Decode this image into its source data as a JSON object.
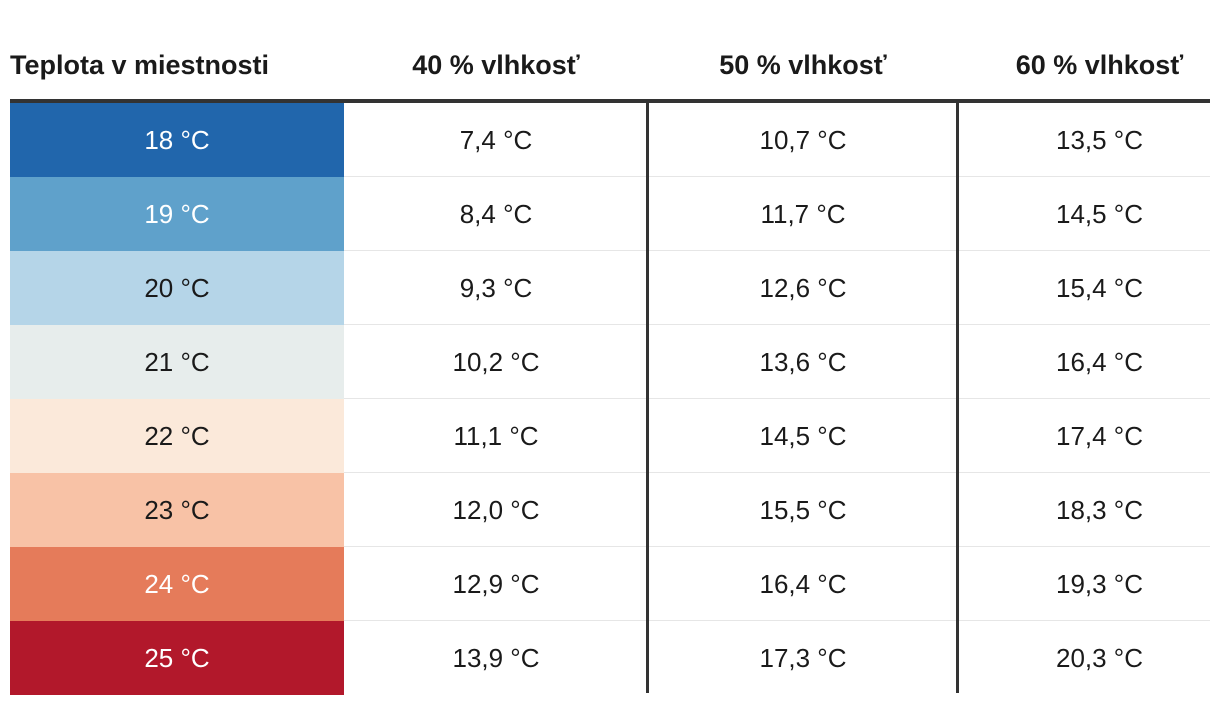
{
  "chart_data": {
    "type": "table",
    "columns": [
      "Teplota v miestnosti",
      "40 % vlhkosť",
      "50 % vlhkosť",
      "60 % vlhkosť"
    ],
    "rows": [
      {
        "room": "18 °C",
        "values": [
          "7,4 °C",
          "10,7 °C",
          "13,5 °C"
        ],
        "color": "#2166ac",
        "text_color": "#ffffff"
      },
      {
        "room": "19 °C",
        "values": [
          "8,4 °C",
          "11,7 °C",
          "14,5 °C"
        ],
        "color": "#5fa1cb",
        "text_color": "#ffffff"
      },
      {
        "room": "20 °C",
        "values": [
          "9,3 °C",
          "12,6 °C",
          "15,4 °C"
        ],
        "color": "#b5d5e8",
        "text_color": "#1a1a1a"
      },
      {
        "room": "21 °C",
        "values": [
          "10,2 °C",
          "13,6 °C",
          "16,4 °C"
        ],
        "color": "#e7edec",
        "text_color": "#1a1a1a"
      },
      {
        "room": "22 °C",
        "values": [
          "11,1 °C",
          "14,5 °C",
          "17,4 °C"
        ],
        "color": "#fbe9da",
        "text_color": "#1a1a1a"
      },
      {
        "room": "23 °C",
        "values": [
          "12,0 °C",
          "15,5 °C",
          "18,3 °C"
        ],
        "color": "#f8c2a6",
        "text_color": "#1a1a1a"
      },
      {
        "room": "24 °C",
        "values": [
          "12,9 °C",
          "16,4 °C",
          "19,3 °C"
        ],
        "color": "#e57b5a",
        "text_color": "#ffffff"
      },
      {
        "room": "25 °C",
        "values": [
          "13,9 °C",
          "17,3 °C",
          "20,3 °C"
        ],
        "color": "#b2182b",
        "text_color": "#ffffff"
      }
    ]
  }
}
